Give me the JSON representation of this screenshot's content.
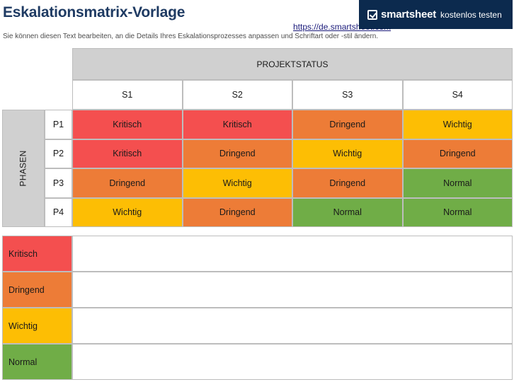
{
  "header": {
    "title": "Eskalationsmatrix-Vorlage",
    "link": "https://de.smartsheet.com",
    "subtitle": "Sie können diesen Text bearbeiten, an die Details Ihres Eskalationsprozesses anpassen und Schriftart oder -stil ändern."
  },
  "banner": {
    "logo_icon": "smartsheet-check-icon",
    "brand": "smartsheet",
    "cta": "kostenlos testen",
    "background": "#0c2a4e"
  },
  "matrix": {
    "column_group_label": "PROJEKTSTATUS",
    "row_group_label": "PHASEN",
    "columns": [
      "S1",
      "S2",
      "S3",
      "S4"
    ],
    "rows": [
      {
        "label": "P1",
        "cells": [
          "Kritisch",
          "Kritisch",
          "Dringend",
          "Wichtig"
        ]
      },
      {
        "label": "P2",
        "cells": [
          "Kritisch",
          "Dringend",
          "Wichtig",
          "Dringend"
        ]
      },
      {
        "label": "P3",
        "cells": [
          "Dringend",
          "Wichtig",
          "Dringend",
          "Normal"
        ]
      },
      {
        "label": "P4",
        "cells": [
          "Wichtig",
          "Dringend",
          "Normal",
          "Normal"
        ]
      }
    ]
  },
  "legend": [
    {
      "label": "Kritisch",
      "color": "#f44f4f",
      "description": ""
    },
    {
      "label": "Dringend",
      "color": "#ed7c37",
      "description": ""
    },
    {
      "label": "Wichtig",
      "color": "#fdbe04",
      "description": ""
    },
    {
      "label": "Normal",
      "color": "#70ad47",
      "description": ""
    }
  ]
}
